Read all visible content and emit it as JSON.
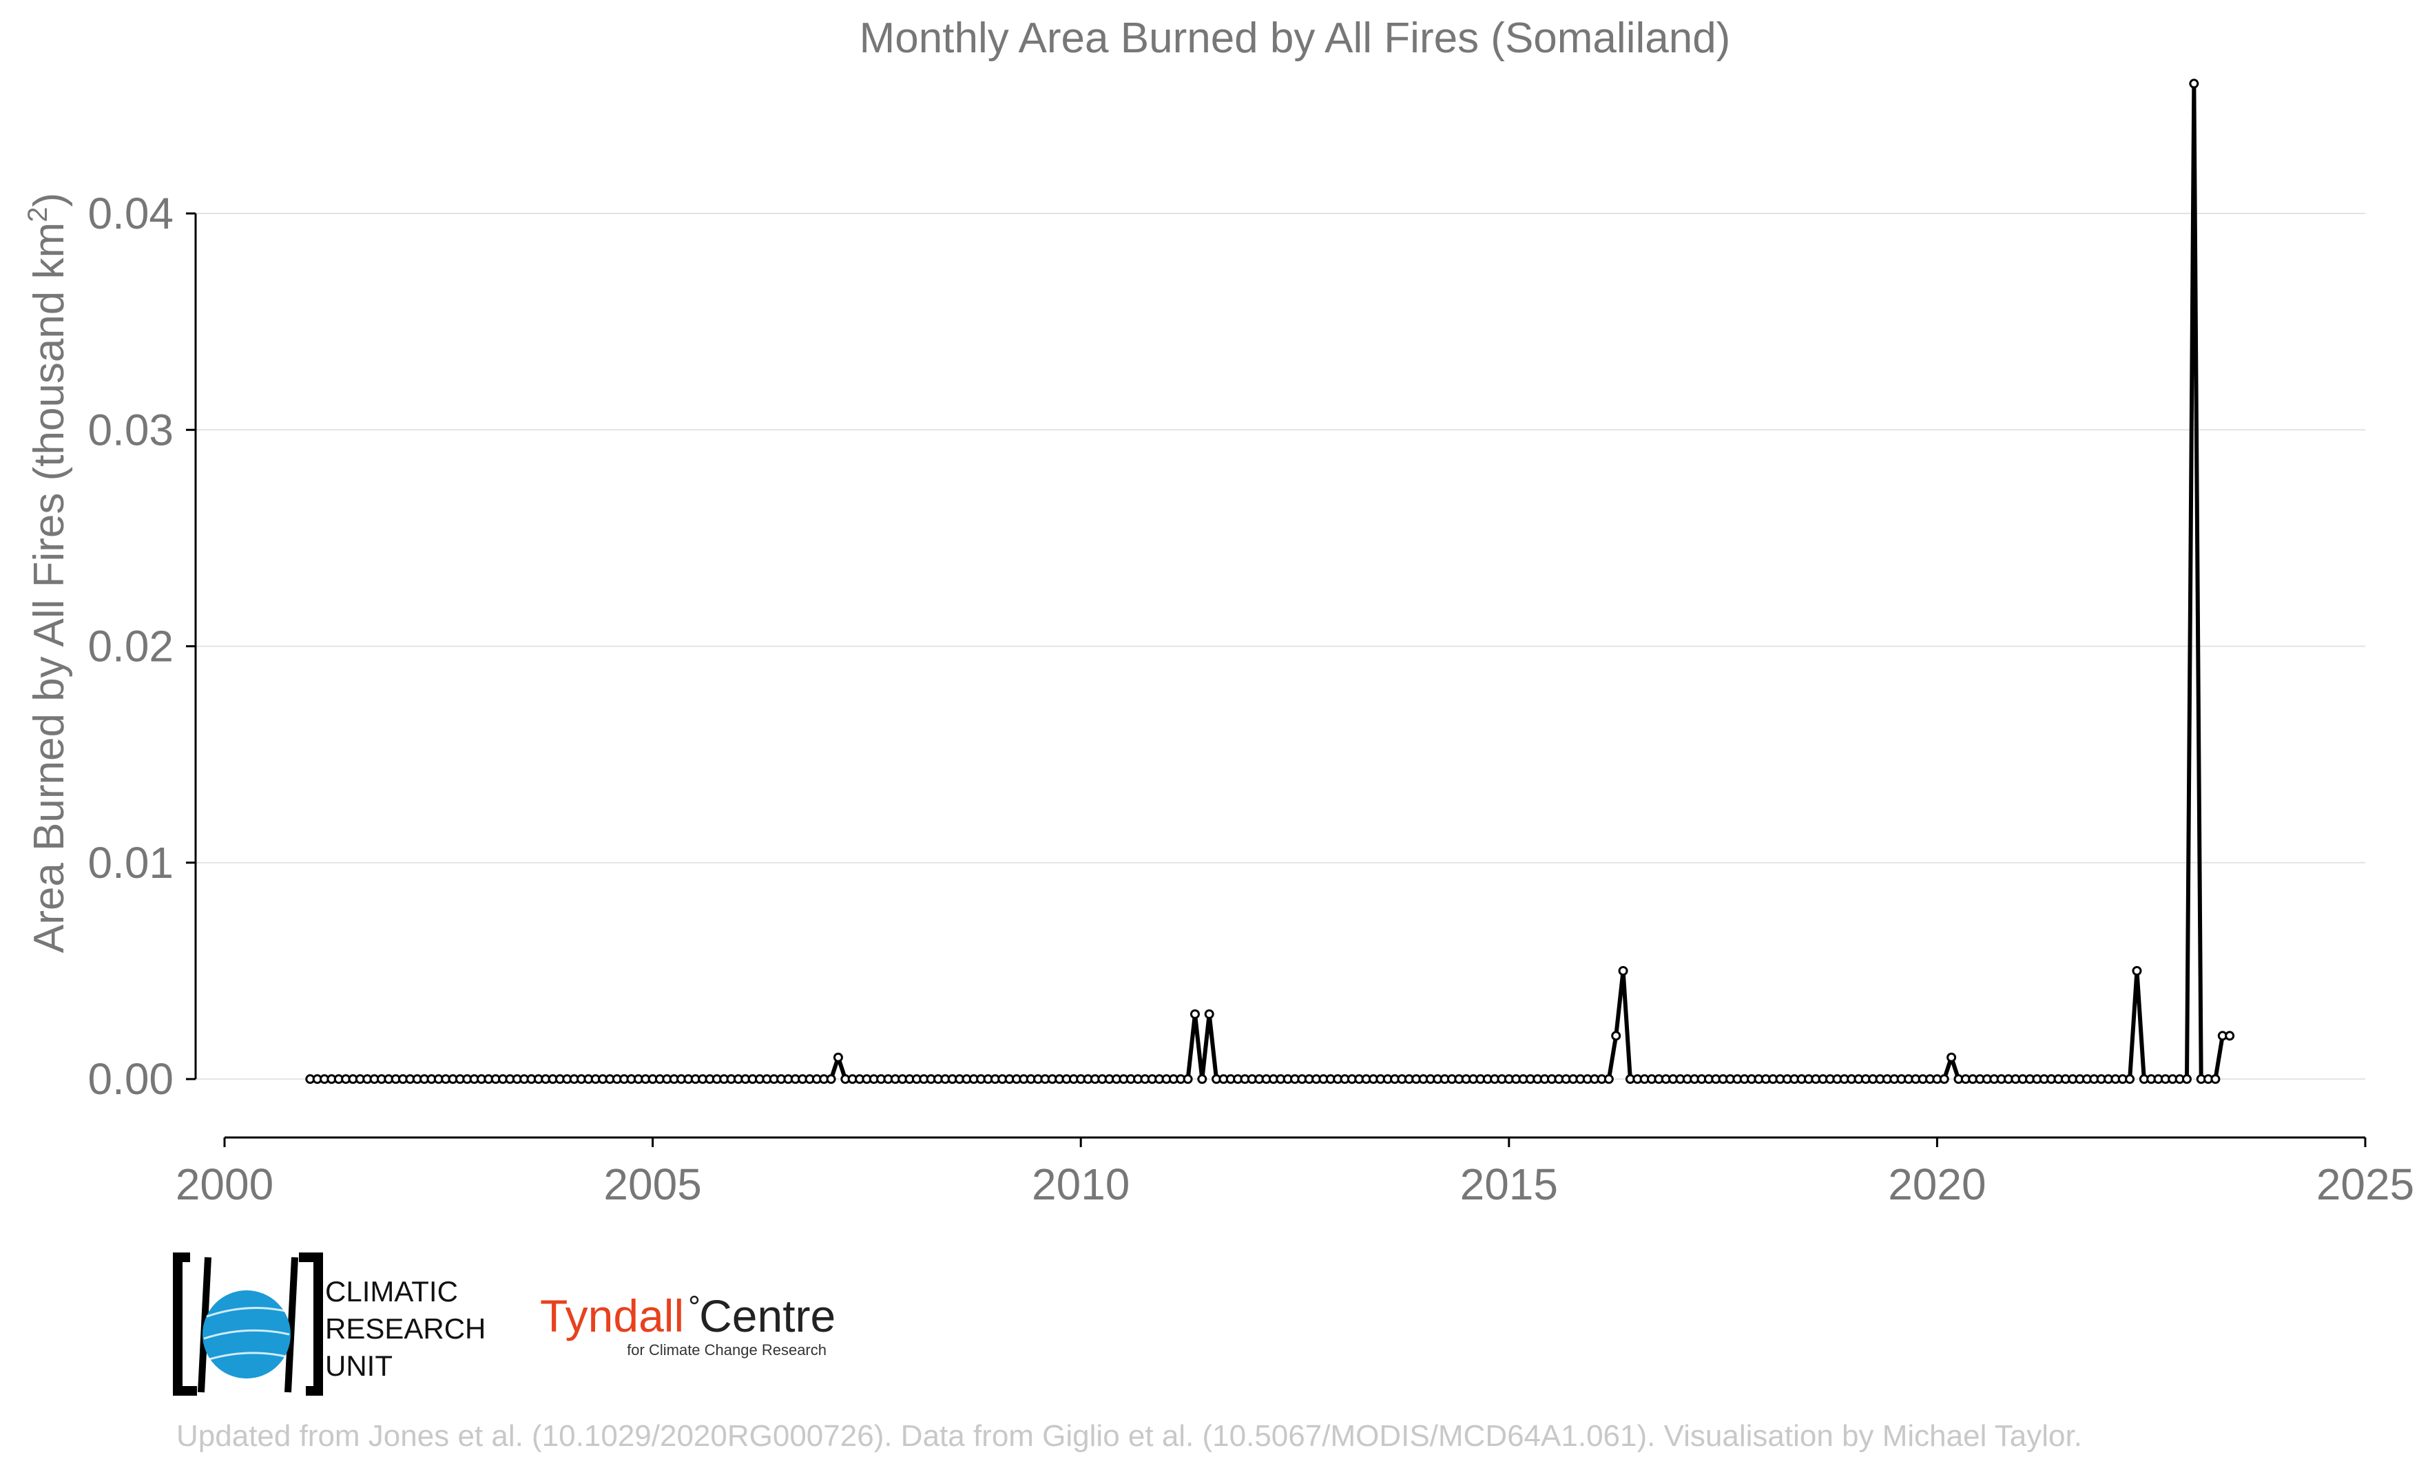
{
  "chart_data": {
    "type": "line",
    "title": "Monthly Area Burned by All Fires (Somaliland)",
    "ylabel": "Area Burned by All Fires (thousand km",
    "ylabel_sup": "2",
    "ylabel_end": ")",
    "xlabel": "",
    "xlim": [
      2000,
      2025
    ],
    "ylim": [
      -0.0027,
      0.0435
    ],
    "x_ticks": [
      "2000",
      "2005",
      "2010",
      "2015",
      "2020",
      "2025"
    ],
    "y_ticks": [
      "0.00",
      "0.01",
      "0.02",
      "0.03",
      "0.04"
    ],
    "grid": "horizontal",
    "legend": "none",
    "line_color": "#000000",
    "marker": "open-circle",
    "series": [
      {
        "start": "2001-01",
        "frequency": "monthly",
        "values": [
          0,
          0,
          0,
          0,
          0,
          0,
          0,
          0,
          0,
          0,
          0,
          0,
          0,
          0,
          0,
          0,
          0,
          0,
          0,
          0,
          0,
          0,
          0,
          0,
          0,
          0,
          0,
          0,
          0,
          0,
          0,
          0,
          0,
          0,
          0,
          0,
          0,
          0,
          0,
          0,
          0,
          0,
          0,
          0,
          0,
          0,
          0,
          0,
          0,
          0,
          0,
          0,
          0,
          0,
          0,
          0,
          0,
          0,
          0,
          0,
          0,
          0,
          0,
          0,
          0,
          0,
          0,
          0,
          0,
          0,
          0,
          0,
          0,
          0,
          0.001,
          0,
          0,
          0,
          0,
          0,
          0,
          0,
          0,
          0,
          0,
          0,
          0,
          0,
          0,
          0,
          0,
          0,
          0,
          0,
          0,
          0,
          0,
          0,
          0,
          0,
          0,
          0,
          0,
          0,
          0,
          0,
          0,
          0,
          0,
          0,
          0,
          0,
          0,
          0,
          0,
          0,
          0,
          0,
          0,
          0,
          0,
          0,
          0,
          0,
          0.003,
          0,
          0.003,
          0,
          0,
          0,
          0,
          0,
          0,
          0,
          0,
          0,
          0,
          0,
          0,
          0,
          0,
          0,
          0,
          0,
          0,
          0,
          0,
          0,
          0,
          0,
          0,
          0,
          0,
          0,
          0,
          0,
          0,
          0,
          0,
          0,
          0,
          0,
          0,
          0,
          0,
          0,
          0,
          0,
          0,
          0,
          0,
          0,
          0,
          0,
          0,
          0,
          0,
          0,
          0,
          0,
          0,
          0,
          0,
          0.002,
          0.005,
          0,
          0,
          0,
          0,
          0,
          0,
          0,
          0,
          0,
          0,
          0,
          0,
          0,
          0,
          0,
          0,
          0,
          0,
          0,
          0,
          0,
          0,
          0,
          0,
          0,
          0,
          0,
          0,
          0,
          0,
          0,
          0,
          0,
          0,
          0,
          0,
          0,
          0,
          0,
          0,
          0,
          0,
          0,
          0,
          0,
          0.001,
          0,
          0,
          0,
          0,
          0,
          0,
          0,
          0,
          0,
          0,
          0,
          0,
          0,
          0,
          0,
          0,
          0,
          0,
          0,
          0,
          0,
          0,
          0,
          0,
          0,
          0.005,
          0,
          0,
          0,
          0,
          0,
          0,
          0,
          0.046,
          0,
          0,
          0,
          0.002,
          0.002
        ]
      }
    ]
  },
  "logos": {
    "cru_line1": "CLIMATIC",
    "cru_line2": "RESEARCH",
    "cru_line3": "UNIT",
    "tyndall_part1": "Tyndall",
    "tyndall_part2": "Centre",
    "tyndall_sub": "for Climate Change Research"
  },
  "credit": "Updated from Jones et al. (10.1029/2020RG000726). Data from Giglio et al. (10.5067/MODIS/MCD64A1.061). Visualisation by Michael Taylor.",
  "colors": {
    "cru_blue": "#1b9ad6",
    "tyndall_red": "#e8411d"
  }
}
